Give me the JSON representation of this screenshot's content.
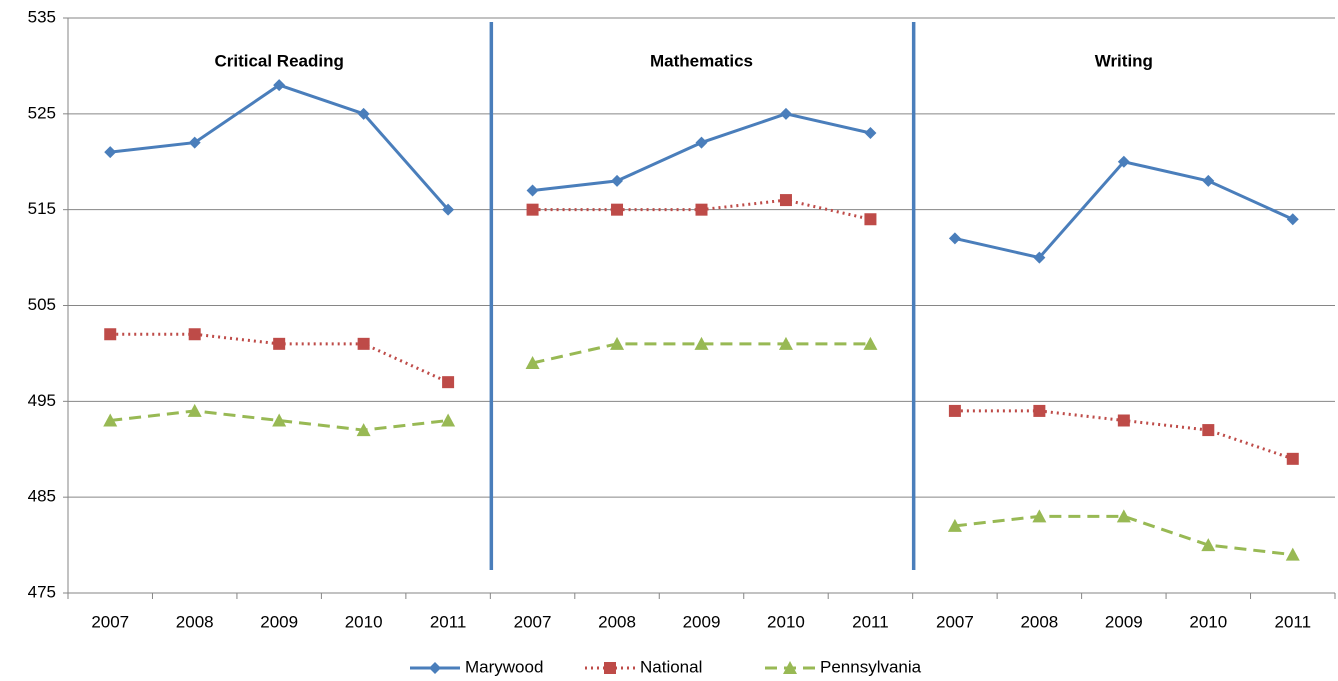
{
  "chart_data": {
    "type": "line",
    "ylim": [
      475,
      535
    ],
    "yticks": [
      475,
      485,
      495,
      505,
      515,
      525,
      535
    ],
    "grid": true,
    "legend": "bottom",
    "series": [
      {
        "name": "Marywood",
        "color": "#4a7ebb",
        "dash": "solid",
        "marker": "diamond"
      },
      {
        "name": "National",
        "color": "#be4b48",
        "dash": "dotted",
        "marker": "square"
      },
      {
        "name": "Pennsylvania",
        "color": "#98b954",
        "dash": "dashed",
        "marker": "triangle"
      }
    ],
    "panels": [
      {
        "title": "Critical Reading",
        "categories": [
          "2007",
          "2008",
          "2009",
          "2010",
          "2011"
        ],
        "series": [
          {
            "values": [
              521,
              522,
              528,
              525,
              515
            ]
          },
          {
            "values": [
              502,
              502,
              501,
              501,
              497
            ]
          },
          {
            "values": [
              493,
              494,
              493,
              492,
              493
            ]
          }
        ]
      },
      {
        "title": "Mathematics",
        "categories": [
          "2007",
          "2008",
          "2009",
          "2010",
          "2011"
        ],
        "series": [
          {
            "values": [
              517,
              518,
              522,
              525,
              523
            ]
          },
          {
            "values": [
              515,
              515,
              515,
              516,
              514
            ]
          },
          {
            "values": [
              499,
              501,
              501,
              501,
              501
            ]
          }
        ]
      },
      {
        "title": "Writing",
        "categories": [
          "2007",
          "2008",
          "2009",
          "2010",
          "2011"
        ],
        "series": [
          {
            "values": [
              512,
              510,
              520,
              518,
              514
            ]
          },
          {
            "values": [
              494,
              494,
              493,
              492,
              489
            ]
          },
          {
            "values": [
              482,
              483,
              483,
              480,
              479
            ]
          }
        ]
      }
    ]
  }
}
